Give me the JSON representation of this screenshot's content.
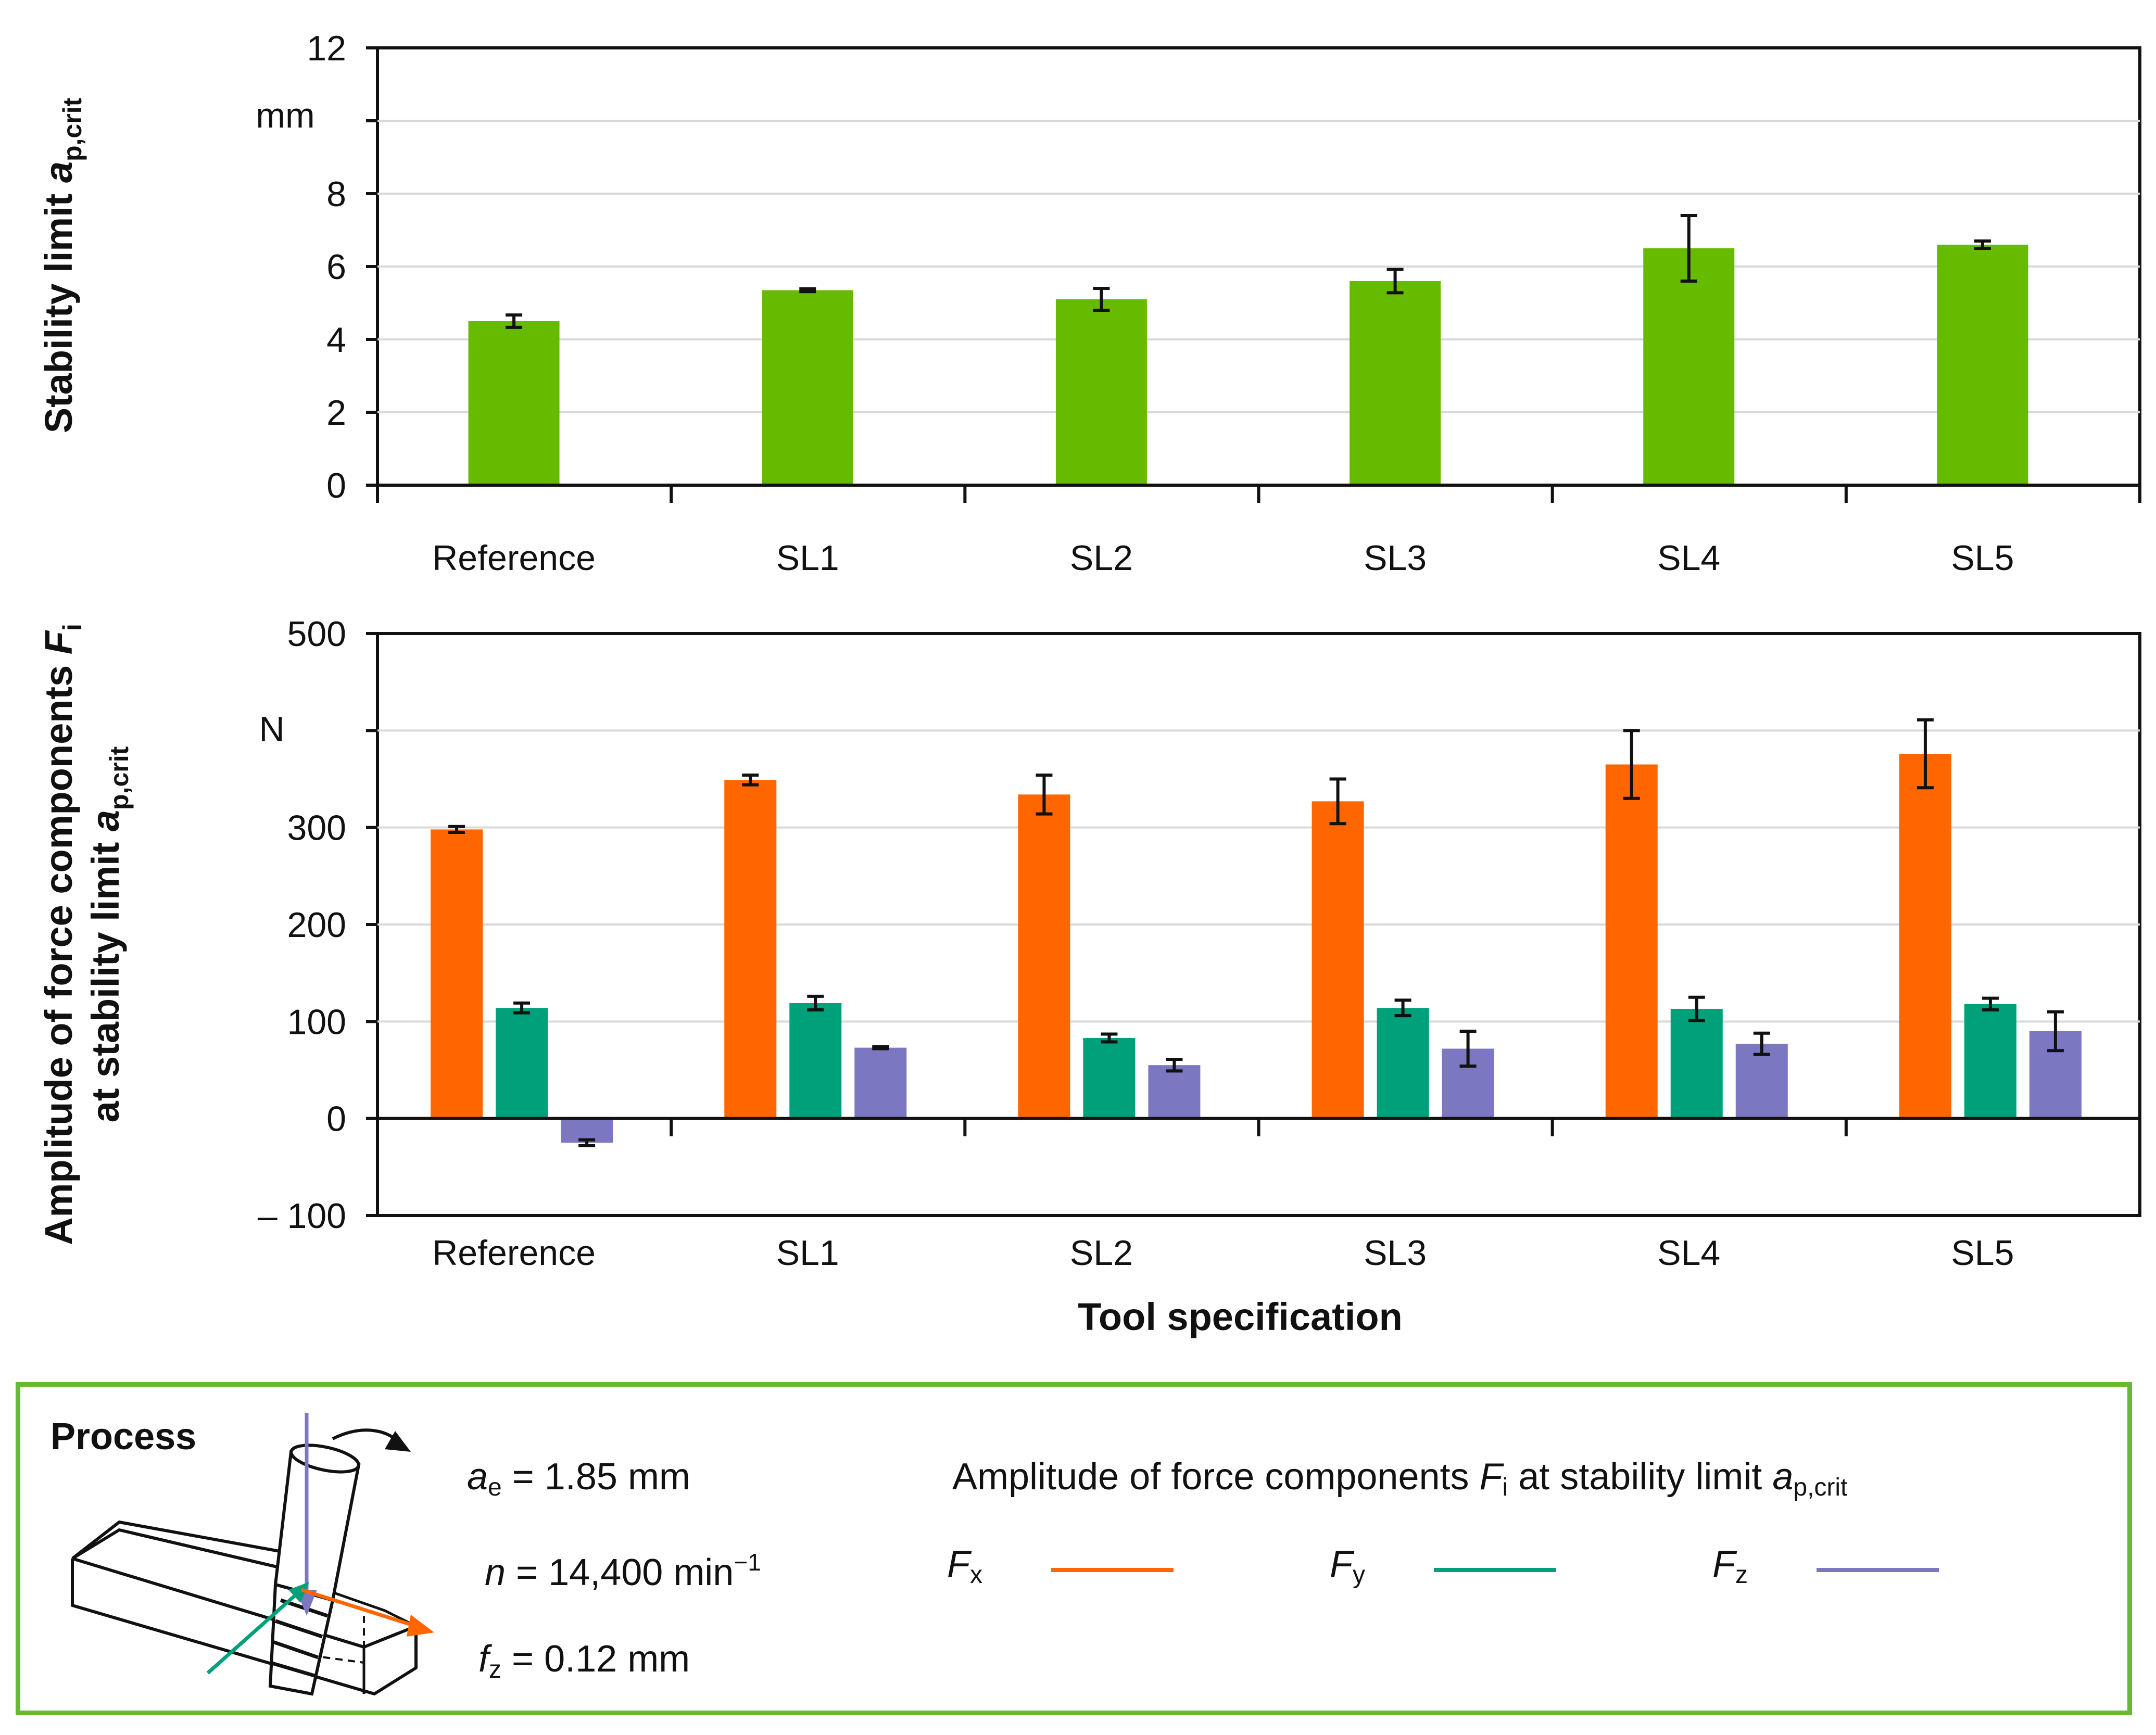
{
  "chart_data": [
    {
      "type": "bar",
      "categories": [
        "Reference",
        "SL1",
        "SL2",
        "SL3",
        "SL4",
        "SL5"
      ],
      "values": [
        4.5,
        5.35,
        5.1,
        5.6,
        6.5,
        6.6
      ],
      "errors": [
        0.17,
        0.04,
        0.3,
        0.32,
        0.9,
        0.1
      ],
      "ylabel": "Stability limit ",
      "ylabel_symbol": "a",
      "ylabel_sub": "p,crit",
      "unit": "mm",
      "ylim": [
        0,
        12
      ],
      "yticks": [
        "0",
        "2",
        "4",
        "6",
        "8",
        "",
        "12"
      ],
      "grid": true,
      "color": "#66bb00"
    },
    {
      "type": "bar",
      "categories": [
        "Reference",
        "SL1",
        "SL2",
        "SL3",
        "SL4",
        "SL5"
      ],
      "series": [
        {
          "name": "F",
          "sub": "x",
          "color": "#ff6600",
          "values": [
            298,
            349,
            334,
            327,
            365,
            376
          ],
          "errors": [
            3,
            5,
            20,
            23,
            35,
            35
          ]
        },
        {
          "name": "F",
          "sub": "y",
          "color": "#00a07a",
          "values": [
            114,
            119,
            83,
            114,
            113,
            118
          ],
          "errors": [
            5,
            7,
            4,
            8,
            12,
            6
          ]
        },
        {
          "name": "F",
          "sub": "z",
          "color": "#7b77c0",
          "values": [
            -25,
            73,
            55,
            72,
            77,
            90
          ],
          "errors": [
            3,
            1,
            6,
            18,
            11,
            20
          ]
        }
      ],
      "ylabel_line1": "Amplitude of force components ",
      "ylabel_line1_symbol": "F",
      "ylabel_line1_sub": "i",
      "ylabel_line2": "at stability limit ",
      "ylabel_line2_symbol": "a",
      "ylabel_line2_sub": "p,crit",
      "unit": "N",
      "xlabel": "Tool specification",
      "ylim": [
        -100,
        500
      ],
      "yticks": [
        "– 100",
        "0",
        "100",
        "200",
        "300",
        "",
        "500"
      ],
      "grid": true
    }
  ],
  "process": {
    "title": "Process",
    "ae_symbol": "a",
    "ae_sub": "e",
    "ae_value": " = 1.85 mm",
    "n_symbol": "n",
    "n_value": " = 14,400 min",
    "n_sup": "−1",
    "fz_symbol": "f",
    "fz_sub": "z",
    "fz_value": " = 0.12 mm",
    "legend_caption": "Amplitude of force components ",
    "legend_caption_symbol": "F",
    "legend_caption_sub": "i",
    "legend_caption_mid": " at stability limit ",
    "legend_caption_symbol2": "a",
    "legend_caption_sub2": "p,crit",
    "arrow_colors": {
      "x": "#ff6600",
      "y": "#00a07a",
      "z": "#7b77c0"
    }
  }
}
